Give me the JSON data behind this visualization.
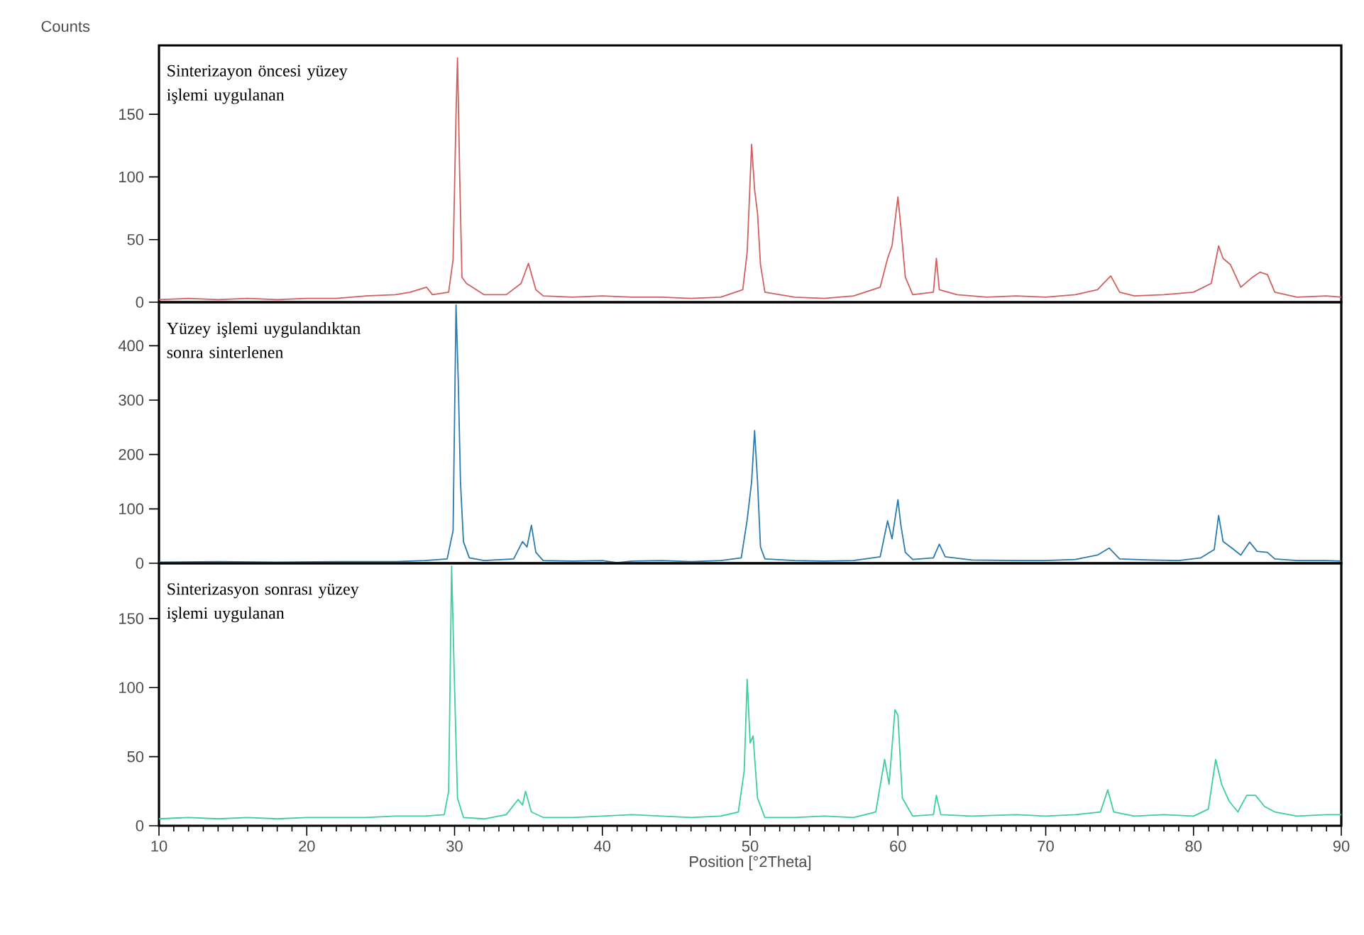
{
  "chart_data": [
    {
      "type": "line",
      "ylabel": "Counts",
      "xlim": [
        10,
        90
      ],
      "xticks": [
        10,
        20,
        30,
        40,
        50,
        60,
        70,
        80,
        90
      ],
      "ylim": [
        0,
        205
      ],
      "yticks": [
        0,
        50,
        100,
        150
      ],
      "tick_labels": "y",
      "series": [
        {
          "name": "Sinterizayon öncesi yüzey işlemi uygulanan",
          "color": "#d0605f",
          "x": [
            10,
            12,
            14,
            16,
            18,
            20,
            22,
            24,
            26,
            27,
            28.1,
            28.5,
            29.6,
            29.9,
            30.1,
            30.2,
            30.35,
            30.5,
            30.8,
            31.2,
            32,
            33.5,
            34.5,
            35.0,
            35.5,
            36,
            38,
            40,
            42,
            44,
            46,
            48,
            49.5,
            49.8,
            50.1,
            50.3,
            50.5,
            50.7,
            51,
            53,
            55,
            57,
            58.8,
            59.3,
            59.6,
            60.0,
            60.2,
            60.5,
            61,
            62.4,
            62.6,
            62.8,
            64,
            66,
            68,
            70,
            72,
            73.5,
            74.4,
            75,
            76,
            78,
            80,
            81.2,
            81.7,
            82,
            82.5,
            83.2,
            84,
            84.5,
            85,
            85.5,
            87,
            89,
            90
          ],
          "values": [
            2,
            3,
            2,
            3,
            2,
            3,
            3,
            5,
            6,
            8,
            12,
            6,
            8,
            34,
            150,
            195,
            100,
            20,
            15,
            12,
            6,
            6,
            15,
            31,
            10,
            5,
            4,
            5,
            4,
            4,
            3,
            4,
            10,
            40,
            126,
            90,
            71,
            30,
            8,
            4,
            3,
            5,
            12,
            35,
            45,
            84,
            60,
            20,
            6,
            8,
            35,
            10,
            6,
            4,
            5,
            4,
            6,
            10,
            21,
            8,
            5,
            6,
            8,
            15,
            45,
            35,
            30,
            12,
            20,
            24,
            22,
            8,
            4,
            5,
            4
          ]
        }
      ]
    },
    {
      "type": "line",
      "xlim": [
        10,
        90
      ],
      "xticks": [
        10,
        20,
        30,
        40,
        50,
        60,
        70,
        80,
        90
      ],
      "ylim": [
        0,
        480
      ],
      "yticks": [
        0,
        100,
        200,
        300,
        400
      ],
      "tick_labels": "y",
      "series": [
        {
          "name": "Yüzey işlemi uygulandıktan sonra sinterlenen",
          "color": "#2a7bb0",
          "x": [
            10,
            14,
            18,
            22,
            26,
            28,
            29.5,
            29.9,
            30.1,
            30.25,
            30.4,
            30.6,
            31,
            32,
            34,
            34.6,
            34.9,
            35.2,
            35.5,
            36,
            38,
            40,
            41,
            42,
            44,
            46,
            48,
            49.4,
            49.8,
            50.1,
            50.3,
            50.5,
            50.7,
            51,
            53,
            55,
            57,
            58.8,
            59.3,
            59.6,
            60.0,
            60.2,
            60.5,
            61,
            62.4,
            62.8,
            63.2,
            65,
            68,
            70,
            72,
            73.5,
            74.3,
            75,
            77,
            79,
            80.5,
            81.4,
            81.7,
            82,
            82.5,
            83.2,
            83.8,
            84.3,
            85,
            85.5,
            87,
            89,
            90
          ],
          "values": [
            2,
            3,
            2,
            3,
            3,
            5,
            8,
            60,
            475,
            335,
            150,
            40,
            10,
            5,
            8,
            40,
            30,
            70,
            20,
            5,
            4,
            5,
            1,
            4,
            5,
            3,
            5,
            10,
            80,
            150,
            244,
            150,
            30,
            8,
            5,
            4,
            5,
            12,
            78,
            45,
            117,
            70,
            20,
            7,
            10,
            35,
            12,
            6,
            5,
            5,
            7,
            15,
            28,
            8,
            6,
            5,
            10,
            25,
            88,
            40,
            30,
            15,
            39,
            22,
            20,
            8,
            5,
            5,
            4
          ]
        }
      ]
    },
    {
      "type": "line",
      "xlabel": "Position [°2Theta]",
      "xlim": [
        10,
        90
      ],
      "xticks": [
        10,
        20,
        30,
        40,
        50,
        60,
        70,
        80,
        90
      ],
      "ylim": [
        0,
        190
      ],
      "yticks": [
        0,
        50,
        100,
        150
      ],
      "series": [
        {
          "name": "Sinterizasyon sonrası yüzey işlemi uygulanan",
          "color": "#3ccf9a",
          "x": [
            10,
            12,
            14,
            16,
            18,
            20,
            22,
            24,
            26,
            28,
            29.3,
            29.6,
            29.8,
            30.0,
            30.2,
            30.6,
            32,
            33.5,
            34.3,
            34.6,
            34.8,
            35.2,
            36,
            38,
            40,
            42,
            44,
            46,
            48,
            49.2,
            49.6,
            49.8,
            50.0,
            50.2,
            50.5,
            51,
            53,
            55,
            57,
            58.5,
            59.1,
            59.4,
            59.8,
            60.0,
            60.3,
            61,
            62.4,
            62.6,
            62.9,
            65,
            68,
            70,
            72,
            73.7,
            74.2,
            74.6,
            76,
            78,
            80,
            81,
            81.5,
            81.9,
            82.4,
            83,
            83.6,
            84.2,
            84.8,
            85.5,
            87,
            89,
            90
          ],
          "values": [
            5,
            6,
            5,
            6,
            5,
            6,
            6,
            6,
            7,
            7,
            8,
            25,
            188,
            100,
            20,
            6,
            5,
            8,
            19,
            15,
            25,
            10,
            6,
            6,
            7,
            8,
            7,
            6,
            7,
            10,
            40,
            106,
            60,
            65,
            20,
            6,
            6,
            7,
            6,
            10,
            48,
            30,
            84,
            80,
            20,
            7,
            8,
            22,
            8,
            7,
            8,
            7,
            8,
            10,
            26,
            10,
            7,
            8,
            7,
            12,
            48,
            30,
            18,
            10,
            22,
            22,
            14,
            10,
            7,
            8,
            8
          ]
        }
      ]
    }
  ]
}
